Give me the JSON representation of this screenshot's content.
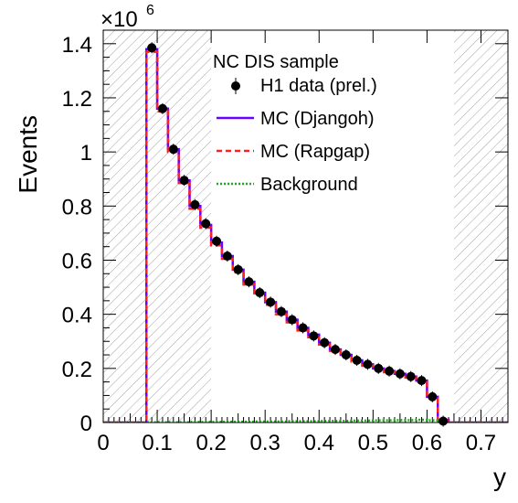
{
  "chart_data": {
    "type": "histogram",
    "title": "",
    "xlabel": "y",
    "ylabel": "Events",
    "y_multiplier": "×10",
    "y_multiplier_exp": "6",
    "xlim": [
      0,
      0.75
    ],
    "ylim": [
      0,
      1.45
    ],
    "x_ticks": [
      0,
      0.1,
      0.2,
      0.3,
      0.4,
      0.5,
      0.6,
      0.7
    ],
    "x_tick_labels": [
      "0",
      "0.1",
      "0.2",
      "0.3",
      "0.4",
      "0.5",
      "0.6",
      "0.7"
    ],
    "y_ticks": [
      0,
      0.2,
      0.4,
      0.6,
      0.8,
      1.0,
      1.2,
      1.4
    ],
    "y_tick_labels": [
      "0",
      "0.2",
      "0.4",
      "0.6",
      "0.8",
      "1",
      "1.2",
      "1.4"
    ],
    "excluded_regions": [
      [
        0,
        0.2
      ],
      [
        0.65,
        0.75
      ]
    ],
    "bin_edges": [
      0,
      0.08,
      0.1,
      0.12,
      0.14,
      0.16,
      0.18,
      0.2,
      0.22,
      0.24,
      0.26,
      0.28,
      0.3,
      0.32,
      0.34,
      0.36,
      0.38,
      0.4,
      0.42,
      0.44,
      0.46,
      0.48,
      0.5,
      0.52,
      0.54,
      0.56,
      0.58,
      0.6,
      0.62,
      0.64,
      0.75
    ],
    "series": [
      {
        "name": "H1 data (prel.)",
        "style": "points",
        "x": [
          0.09,
          0.11,
          0.13,
          0.15,
          0.17,
          0.19,
          0.21,
          0.23,
          0.25,
          0.27,
          0.29,
          0.31,
          0.33,
          0.35,
          0.37,
          0.39,
          0.41,
          0.43,
          0.45,
          0.47,
          0.49,
          0.51,
          0.53,
          0.55,
          0.57,
          0.59,
          0.61,
          0.63
        ],
        "values": [
          1.385,
          1.16,
          1.01,
          0.895,
          0.805,
          0.735,
          0.67,
          0.615,
          0.565,
          0.52,
          0.48,
          0.445,
          0.41,
          0.38,
          0.35,
          0.32,
          0.295,
          0.27,
          0.25,
          0.23,
          0.215,
          0.2,
          0.19,
          0.18,
          0.17,
          0.155,
          0.095,
          0.005
        ]
      },
      {
        "name": "MC (Djangoh)",
        "style": "step",
        "color": "#6a00ff",
        "values": [
          0,
          1.38,
          1.16,
          1.01,
          0.895,
          0.8,
          0.73,
          0.665,
          0.615,
          0.565,
          0.52,
          0.48,
          0.445,
          0.41,
          0.38,
          0.35,
          0.325,
          0.295,
          0.27,
          0.25,
          0.23,
          0.215,
          0.2,
          0.19,
          0.18,
          0.17,
          0.155,
          0.095,
          0.01,
          0
        ]
      },
      {
        "name": "MC (Rapgap)",
        "style": "step-dashed",
        "color": "#ff2020",
        "values": [
          0,
          1.37,
          1.15,
          1.0,
          0.885,
          0.79,
          0.72,
          0.655,
          0.605,
          0.555,
          0.51,
          0.47,
          0.435,
          0.4,
          0.37,
          0.34,
          0.315,
          0.288,
          0.265,
          0.245,
          0.225,
          0.21,
          0.196,
          0.186,
          0.176,
          0.166,
          0.15,
          0.09,
          0.008,
          0
        ]
      },
      {
        "name": "Background",
        "style": "step-dotted",
        "color": "#22aa22",
        "values": [
          0,
          0.001,
          0.001,
          0.001,
          0.001,
          0.002,
          0.002,
          0.002,
          0.003,
          0.003,
          0.003,
          0.004,
          0.004,
          0.004,
          0.005,
          0.005,
          0.005,
          0.006,
          0.006,
          0.006,
          0.007,
          0.007,
          0.008,
          0.008,
          0.009,
          0.009,
          0.01,
          0.008,
          0.002,
          0
        ]
      }
    ],
    "legend": {
      "header": "NC DIS sample",
      "placement": "top-center",
      "entries": [
        "H1 data (prel.)",
        "MC (Djangoh)",
        "MC (Rapgap)",
        "Background"
      ]
    }
  }
}
